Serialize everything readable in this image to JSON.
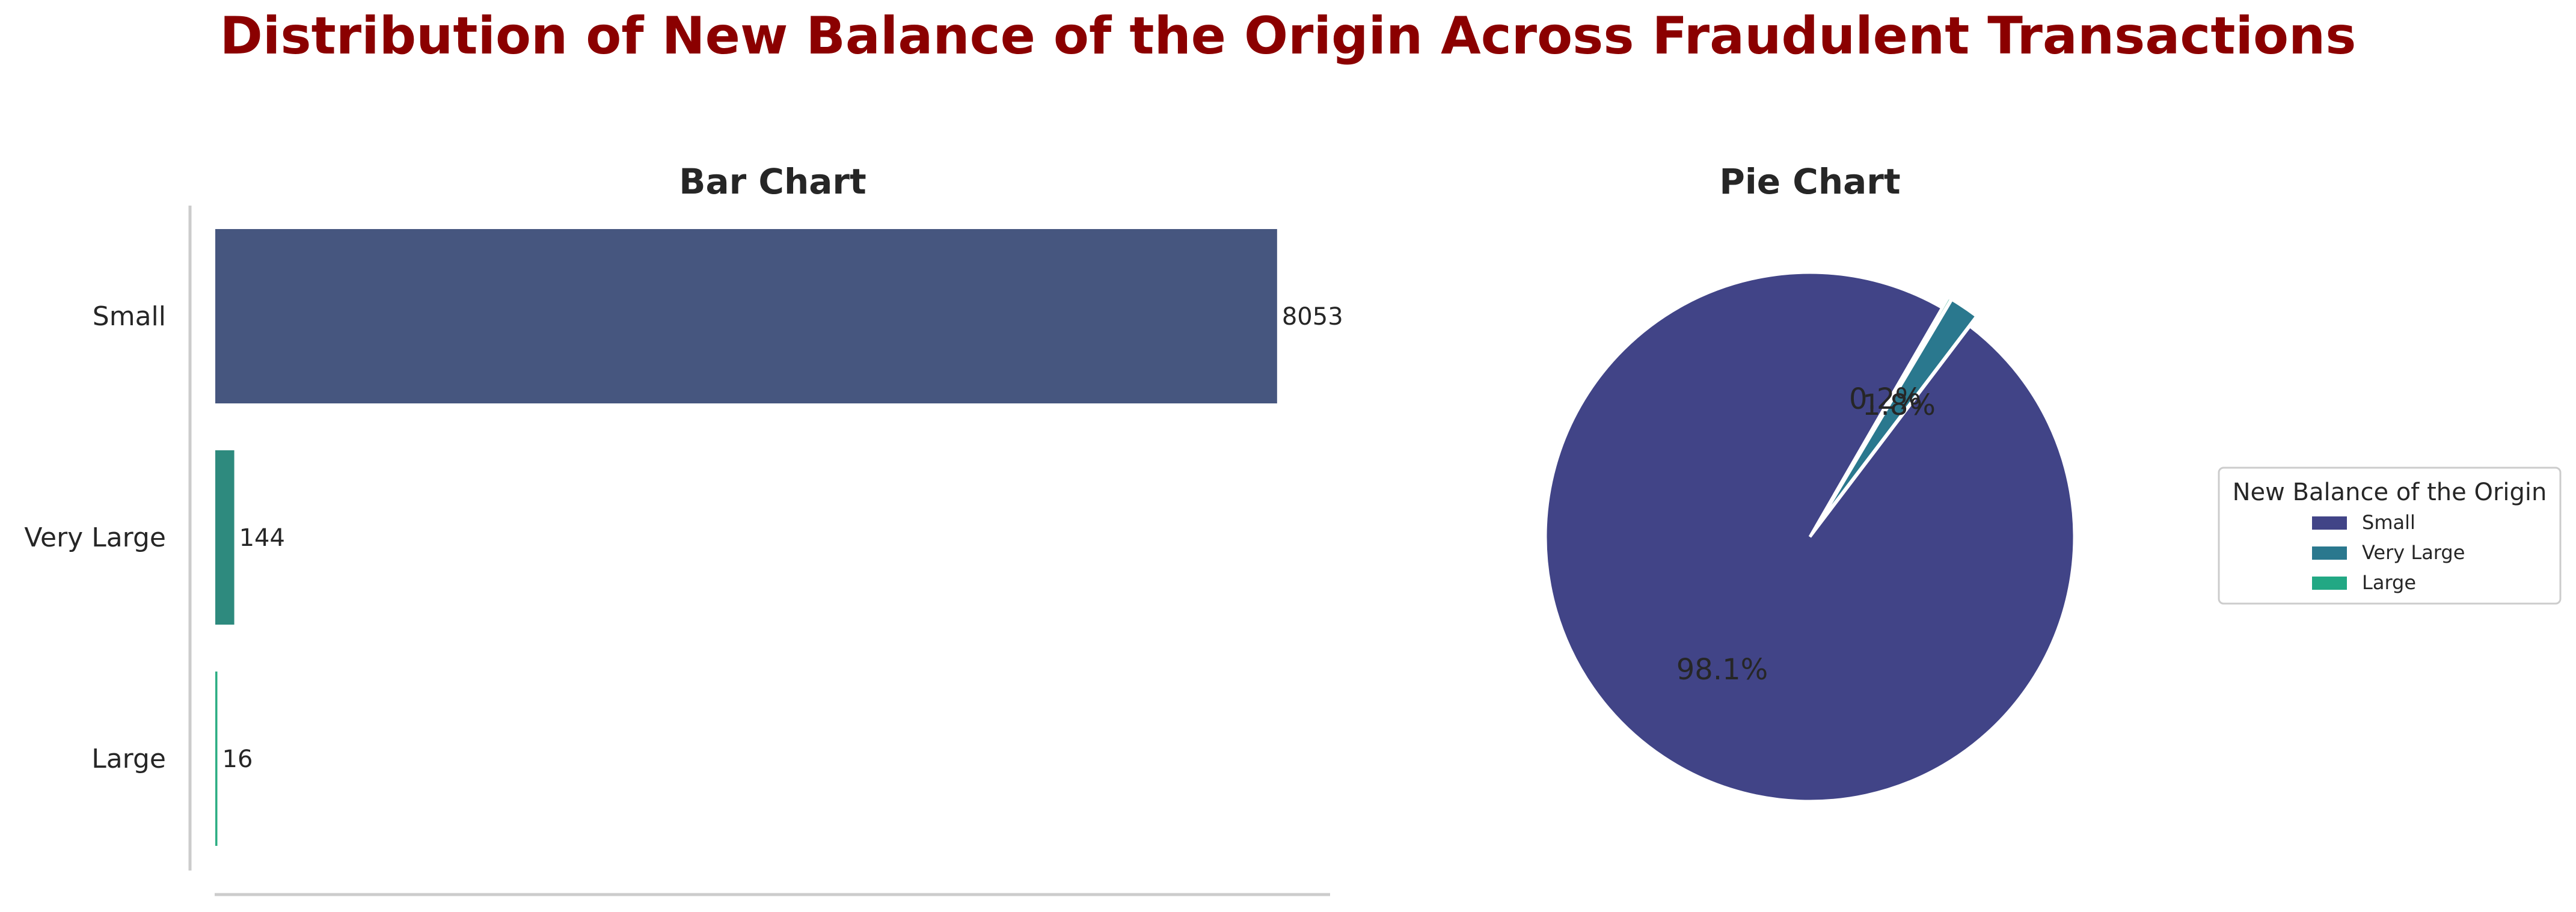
{
  "title": "Distribution of New Balance of the Origin Across Fraudulent Transactions",
  "chart_data": [
    {
      "type": "bar",
      "orientation": "horizontal",
      "title": "Bar Chart",
      "categories": [
        "Small",
        "Very Large",
        "Large"
      ],
      "values": [
        8053,
        144,
        16
      ],
      "colors": [
        "#46567f",
        "#2e8a7e",
        "#2bad82"
      ],
      "xlabel": "",
      "ylabel": "",
      "xlim": [
        0,
        8455
      ],
      "grid": false
    },
    {
      "type": "pie",
      "title": "Pie Chart",
      "labels": [
        "Small",
        "Very Large",
        "Large"
      ],
      "values": [
        98.1,
        1.8,
        0.2
      ],
      "pct_labels": [
        "98.1%",
        "1.8%",
        "0.2%"
      ],
      "colors": [
        "#414487",
        "#2a788e",
        "#22a884"
      ],
      "legend_title": "New Balance of the Origin",
      "legend_placement": "right"
    }
  ]
}
